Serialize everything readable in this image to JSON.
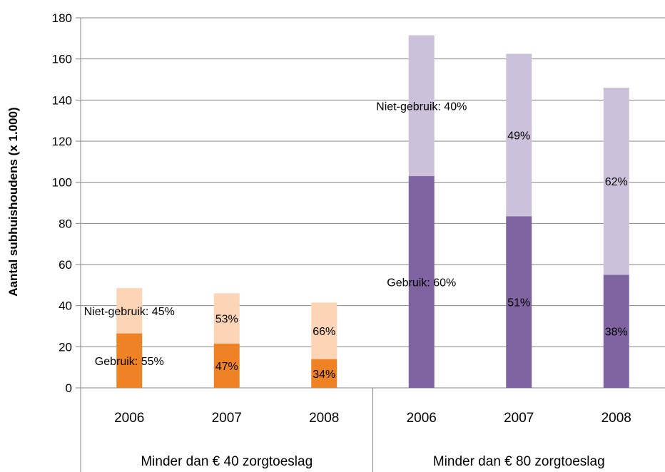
{
  "chart_data": {
    "type": "bar",
    "stacked": true,
    "ylabel": "Aantal subhuishoudens (x 1.000)",
    "ylim": [
      0,
      180
    ],
    "yticks": [
      0,
      20,
      40,
      60,
      80,
      100,
      120,
      140,
      160,
      180
    ],
    "grid": true,
    "groups": [
      {
        "label": "Minder dan € 40 zorgtoeslag",
        "colors": {
          "gebruik": "#F08226",
          "niet_gebruik": "#FBD5B5"
        },
        "bars": [
          {
            "year": "2006",
            "gebruik": 26.5,
            "niet_gebruik": 22,
            "gebruik_label": "Gebruik: 55%",
            "niet_gebruik_label": "Niet-gebruik: 45%"
          },
          {
            "year": "2007",
            "gebruik": 21.5,
            "niet_gebruik": 24.5,
            "gebruik_label": "47%",
            "niet_gebruik_label": "53%"
          },
          {
            "year": "2008",
            "gebruik": 14,
            "niet_gebruik": 27.5,
            "gebruik_label": "34%",
            "niet_gebruik_label": "66%"
          }
        ]
      },
      {
        "label": "Minder dan € 80 zorgtoeslag",
        "colors": {
          "gebruik": "#8064A2",
          "niet_gebruik": "#CCC1DA"
        },
        "bars": [
          {
            "year": "2006",
            "gebruik": 103,
            "niet_gebruik": 68.5,
            "gebruik_label": "Gebruik: 60%",
            "niet_gebruik_label": "Niet-gebruik: 40%"
          },
          {
            "year": "2007",
            "gebruik": 83.5,
            "niet_gebruik": 79,
            "gebruik_label": "51%",
            "niet_gebruik_label": "49%"
          },
          {
            "year": "2008",
            "gebruik": 55,
            "niet_gebruik": 91,
            "gebruik_label": "38%",
            "niet_gebruik_label": "62%"
          }
        ]
      }
    ]
  }
}
